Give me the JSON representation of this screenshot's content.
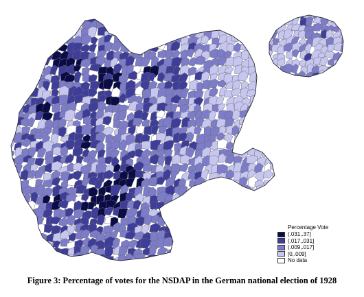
{
  "legend": {
    "title": "Percentage Vote",
    "entries": [
      {
        "label": "(.031,.37]",
        "color": "#0b0b45"
      },
      {
        "label": "(.017,.031]",
        "color": "#3e3e98"
      },
      {
        "label": "(.009,.017]",
        "color": "#7c7cc8"
      },
      {
        "label": "[0,.009]",
        "color": "#c6c6ef"
      },
      {
        "label": "No data",
        "color": "#ffffff"
      }
    ]
  },
  "caption": "Figure 3: Percentage of votes for the NSDAP in the German national election of 1928",
  "colors": {
    "border": "#6b6b7a",
    "outline": "#2a2a3a"
  }
}
